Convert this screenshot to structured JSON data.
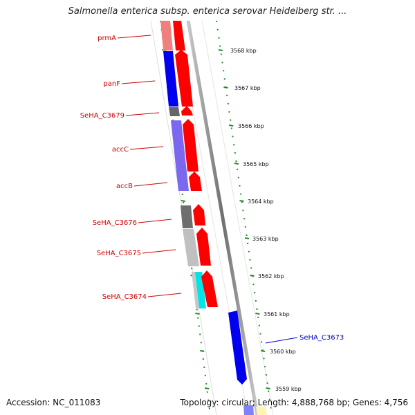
{
  "title": "Salmonella enterica subsp. enterica serovar Heidelberg str. ...",
  "footer": {
    "accession": "Accession: NC_011083",
    "summary": "Topology: circular; Length: 4,888,768 bp; Genes: 4,756"
  },
  "scale_labels": [
    "3568 kbp",
    "3567 kbp",
    "3566 kbp",
    "3565 kbp",
    "3564 kbp",
    "3563 kbp",
    "3562 kbp",
    "3561 kbp",
    "3560 kbp",
    "3559 kbp"
  ],
  "gene_labels": [
    "prmA",
    "panF",
    "SeHA_C3679",
    "accC",
    "accB",
    "SeHA_C3676",
    "SeHA_C3675",
    "SeHA_C3674",
    "SeHA_C3673"
  ],
  "colors": {
    "label_red": "#cc0000",
    "label_blue": "#0000cc",
    "cds_red": "#ff0000",
    "cds_blue": "#0000ee",
    "tick_green": "#2a8a2a",
    "backbone": "#8c8c8c"
  }
}
